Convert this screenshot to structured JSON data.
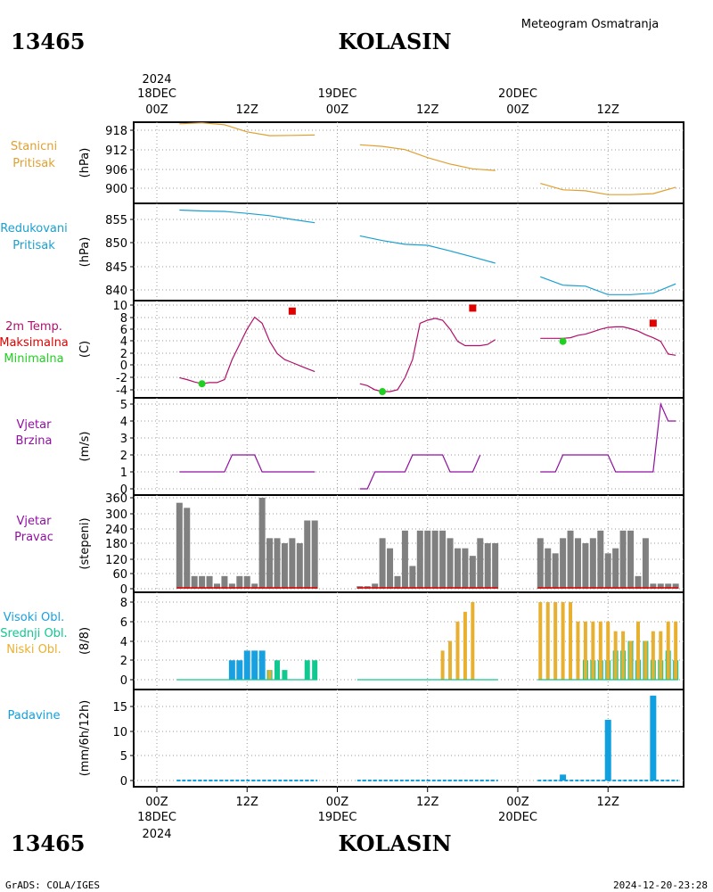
{
  "header": {
    "station_id": "13465",
    "station_name": "KOLASIN",
    "product": "Meteogram Osmatranja"
  },
  "footer": {
    "station_id": "13465",
    "station_name": "KOLASIN",
    "credit": "GrADS: COLA/IGES",
    "timestamp": "2024-12-20-23:28"
  },
  "time_axis": {
    "top_year": "2024",
    "bottom_year": "2024",
    "dates": [
      "18DEC",
      "19DEC",
      "20DEC"
    ],
    "ticks": [
      "00Z",
      "12Z",
      "00Z",
      "12Z",
      "00Z",
      "12Z"
    ],
    "tick_hours": [
      0,
      12,
      24,
      36,
      48,
      60
    ]
  },
  "colors": {
    "pressure_station": "#e0a030",
    "pressure_reduced": "#1aa0d0",
    "temperature": "#b0106a",
    "max_marker": "#e00000",
    "min_marker": "#20d020",
    "wind": "#9010a0",
    "wind_dir_bars": "#808080",
    "cloud_high": "#18a0e0",
    "cloud_mid": "#10c890",
    "cloud_low": "#e8b030",
    "precip": "#10a0e0"
  },
  "chart_data": [
    {
      "type": "line",
      "panel": "station_pressure",
      "label_lines": [
        "Stanicni",
        "Pritisak"
      ],
      "unit": "(hPa)",
      "yticks": [
        "918",
        "912",
        "906",
        "900"
      ],
      "ylim": [
        896,
        921
      ],
      "series": [
        {
          "x": [
            3,
            6,
            9,
            12,
            15,
            18,
            21
          ],
          "y": [
            920,
            920.3,
            919.7,
            917.5,
            916.3,
            916.4,
            916.5
          ]
        },
        {
          "x": [
            27,
            30,
            33,
            36,
            39,
            42,
            45
          ],
          "y": [
            913.5,
            913,
            912,
            909.5,
            907.5,
            906,
            905.5
          ]
        },
        {
          "x": [
            51,
            54,
            57,
            60,
            63,
            66,
            69
          ],
          "y": [
            901.5,
            899.5,
            899.2,
            898,
            898,
            898.3,
            900.3
          ]
        }
      ]
    },
    {
      "type": "line",
      "panel": "reduced_pressure",
      "label_lines": [
        "Redukovani",
        "Pritisak"
      ],
      "unit": "(hPa)",
      "yticks": [
        "855",
        "850",
        "845",
        "840"
      ],
      "ylim": [
        837,
        858
      ],
      "series": [
        {
          "x": [
            3,
            6,
            9,
            12,
            15,
            18,
            21
          ],
          "y": [
            857,
            856.8,
            856.7,
            856.3,
            855.8,
            855,
            854.3
          ]
        },
        {
          "x": [
            27,
            30,
            33,
            36,
            39,
            42,
            45
          ],
          "y": [
            851.5,
            850.5,
            849.7,
            849.5,
            848.3,
            847,
            845.7
          ]
        },
        {
          "x": [
            51,
            54,
            57,
            60,
            63,
            66,
            69
          ],
          "y": [
            842.8,
            841,
            840.8,
            839,
            839,
            839.3,
            841.3
          ]
        }
      ]
    },
    {
      "type": "line",
      "panel": "temperature",
      "label_lines": [
        "2m Temp.",
        "Maksimalna",
        "Minimalna"
      ],
      "unit": "(C)",
      "yticks": [
        "10",
        "8",
        "6",
        "4",
        "2",
        "0",
        "-2",
        "-4"
      ],
      "ylim": [
        -5,
        10
      ],
      "series": [
        {
          "x": [
            3,
            4,
            5,
            6,
            7,
            8,
            9,
            10,
            11,
            12,
            13,
            14,
            15,
            16,
            17,
            18,
            19,
            20,
            21
          ],
          "y": [
            -2,
            -2.3,
            -2.7,
            -3,
            -2.8,
            -2.8,
            -2.3,
            1,
            3.5,
            6,
            8,
            7,
            4,
            2,
            1,
            0.5,
            0,
            -0.5,
            -1
          ]
        },
        {
          "x": [
            27,
            28,
            29,
            30,
            31,
            32,
            33,
            34,
            35,
            36,
            37,
            38,
            39,
            40,
            41,
            42,
            43,
            44,
            45
          ],
          "y": [
            -3,
            -3.3,
            -4,
            -4.3,
            -4.3,
            -4,
            -2,
            1,
            7,
            7.5,
            7.8,
            7.5,
            6,
            4,
            3.3,
            3.3,
            3.3,
            3.5,
            4.3
          ]
        },
        {
          "x": [
            51,
            52,
            53,
            54,
            55,
            56,
            57,
            58,
            59,
            60,
            61,
            62,
            63,
            64,
            65,
            66,
            67,
            68,
            69
          ],
          "y": [
            4.5,
            4.5,
            4.5,
            4.5,
            4.6,
            5,
            5.2,
            5.6,
            6,
            6.3,
            6.4,
            6.4,
            6.1,
            5.7,
            5.1,
            4.6,
            4,
            1.9,
            1.7
          ]
        }
      ],
      "max_points": {
        "x": [
          18,
          42,
          66
        ],
        "y": [
          9,
          9.5,
          7
        ]
      },
      "min_points": {
        "x": [
          6,
          30,
          54
        ],
        "y": [
          -3,
          -4.3,
          4
        ]
      }
    },
    {
      "type": "line",
      "panel": "wind_speed",
      "label_lines": [
        "Vjetar",
        "Brzina"
      ],
      "unit": "(m/s)",
      "yticks": [
        "5",
        "4",
        "3",
        "2",
        "1",
        "0"
      ],
      "ylim": [
        0,
        5.3
      ],
      "series": [
        {
          "x": [
            3,
            6,
            9,
            10,
            13,
            14,
            21
          ],
          "y": [
            1,
            1,
            1,
            2,
            2,
            1,
            1
          ]
        },
        {
          "x": [
            27,
            28,
            29,
            33,
            34,
            38,
            39,
            42,
            43
          ],
          "y": [
            0,
            0,
            1,
            1,
            2,
            2,
            1,
            1,
            2
          ]
        },
        {
          "x": [
            51,
            53,
            54,
            60,
            61,
            66,
            67,
            68,
            69
          ],
          "y": [
            1,
            1,
            2,
            2,
            1,
            1,
            5,
            4,
            4
          ]
        }
      ]
    },
    {
      "type": "bar",
      "panel": "wind_direction",
      "label_lines": [
        "Vjetar",
        "Pravac"
      ],
      "unit": "(stepeni)",
      "yticks": [
        "360",
        "300",
        "240",
        "180",
        "120",
        "60",
        "0"
      ],
      "ylim": [
        0,
        360
      ],
      "x": [
        3,
        4,
        5,
        6,
        7,
        8,
        9,
        10,
        11,
        12,
        13,
        14,
        15,
        16,
        17,
        18,
        19,
        20,
        21,
        27,
        28,
        29,
        30,
        31,
        32,
        33,
        34,
        35,
        36,
        37,
        38,
        39,
        40,
        41,
        42,
        43,
        44,
        45,
        51,
        52,
        53,
        54,
        55,
        56,
        57,
        58,
        59,
        60,
        61,
        62,
        63,
        64,
        65,
        66,
        67,
        68,
        69
      ],
      "values": [
        340,
        320,
        50,
        50,
        50,
        20,
        50,
        20,
        50,
        50,
        20,
        360,
        200,
        200,
        180,
        200,
        180,
        270,
        270,
        10,
        10,
        20,
        200,
        160,
        50,
        230,
        90,
        230,
        230,
        230,
        230,
        200,
        160,
        160,
        130,
        200,
        180,
        180,
        200,
        160,
        140,
        200,
        230,
        200,
        180,
        200,
        230,
        140,
        160,
        230,
        230,
        50,
        200,
        20,
        20,
        20,
        20
      ]
    },
    {
      "type": "bar",
      "panel": "cloud_cover",
      "label_lines": [
        "Visoki Obl.",
        "Srednji Obl.",
        "Niski Obl."
      ],
      "unit": "(8/8)",
      "yticks": [
        "8",
        "6",
        "4",
        "2",
        "0"
      ],
      "ylim": [
        0,
        8.5
      ],
      "x": [
        3,
        4,
        5,
        6,
        7,
        8,
        9,
        10,
        11,
        12,
        13,
        14,
        15,
        16,
        17,
        18,
        19,
        20,
        21,
        27,
        28,
        29,
        30,
        31,
        32,
        33,
        34,
        35,
        36,
        37,
        38,
        39,
        40,
        41,
        42,
        43,
        44,
        45,
        51,
        52,
        53,
        54,
        55,
        56,
        57,
        58,
        59,
        60,
        61,
        62,
        63,
        64,
        65,
        66,
        67,
        68,
        69
      ],
      "series": [
        {
          "name": "Visoki Obl.",
          "values": [
            0,
            0,
            0,
            0,
            0,
            0,
            0,
            2,
            2,
            3,
            3,
            3,
            0,
            0,
            0,
            0,
            0,
            0,
            0,
            0,
            0,
            0,
            0,
            0,
            0,
            0,
            0,
            0,
            0,
            0,
            0,
            0,
            0,
            0,
            0,
            0,
            0,
            0,
            0,
            0,
            0,
            0,
            0,
            0,
            0,
            0,
            0,
            0,
            0,
            0,
            0,
            0,
            0,
            0,
            0,
            0,
            0
          ]
        },
        {
          "name": "Srednji Obl.",
          "values": [
            0,
            0,
            0,
            0,
            0,
            0,
            0,
            0,
            0,
            0,
            0,
            0,
            1,
            2,
            1,
            0,
            0,
            2,
            2,
            0,
            0,
            0,
            0,
            0,
            0,
            0,
            0,
            0,
            0,
            0,
            0,
            0,
            0,
            0,
            0,
            0,
            0,
            0,
            0,
            0,
            0,
            0,
            0,
            0,
            2,
            2,
            2,
            2,
            3,
            3,
            4,
            2,
            4,
            2,
            2,
            3,
            2
          ]
        },
        {
          "name": "Niski Obl.",
          "values": [
            0,
            0,
            0,
            0,
            0,
            0,
            0,
            0,
            0,
            0,
            0,
            0,
            1,
            0,
            0,
            0,
            0,
            0,
            0,
            0,
            0,
            0,
            0,
            0,
            0,
            0,
            0,
            0,
            0,
            0,
            3,
            4,
            6,
            7,
            8,
            0,
            0,
            0,
            8,
            8,
            8,
            8,
            8,
            6,
            6,
            6,
            6,
            6,
            5,
            5,
            4,
            6,
            4,
            5,
            5,
            6,
            6
          ]
        }
      ]
    },
    {
      "type": "bar",
      "panel": "precipitation",
      "label_lines": [
        "Padavine"
      ],
      "unit": "(mm/6h/12h)",
      "yticks": [
        "15",
        "10",
        "5",
        "0"
      ],
      "ylim": [
        -1,
        18.5
      ],
      "x": [
        54,
        60,
        66
      ],
      "values": [
        1.2,
        12.3,
        17.2
      ]
    }
  ]
}
